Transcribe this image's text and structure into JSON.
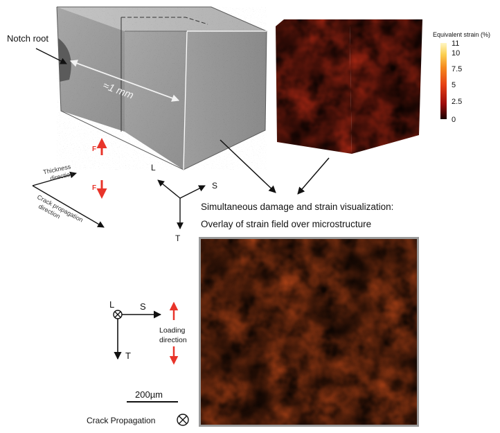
{
  "labels": {
    "notch_root": "Notch root",
    "length": "≈1 mm",
    "force": "F",
    "thickness_direction": "Thickness direction",
    "crack_propagation_direction": "Crack propagation direction",
    "axis_L": "L",
    "axis_S": "S",
    "axis_T": "T",
    "overlay_title_line1": "Simultaneous damage and strain visualization:",
    "overlay_title_line2": "Overlay of strain field over microstructure",
    "loading_direction": "Loading direction",
    "scale_bar": "200µm",
    "crack_propagation": "Crack Propagation"
  },
  "colorbar": {
    "title": "Equivalent strain (%)",
    "ticks": [
      "11",
      "10",
      "7.5",
      "5",
      "2.5",
      "0"
    ],
    "min": 0,
    "max": 11,
    "colors": [
      "#1a0000",
      "#b01010",
      "#e64014",
      "#f58a1e",
      "#fbd052",
      "#fff6c4"
    ]
  },
  "colors": {
    "force_arrow": "#e8342a",
    "specimen_gray": "#9a9a9a"
  }
}
